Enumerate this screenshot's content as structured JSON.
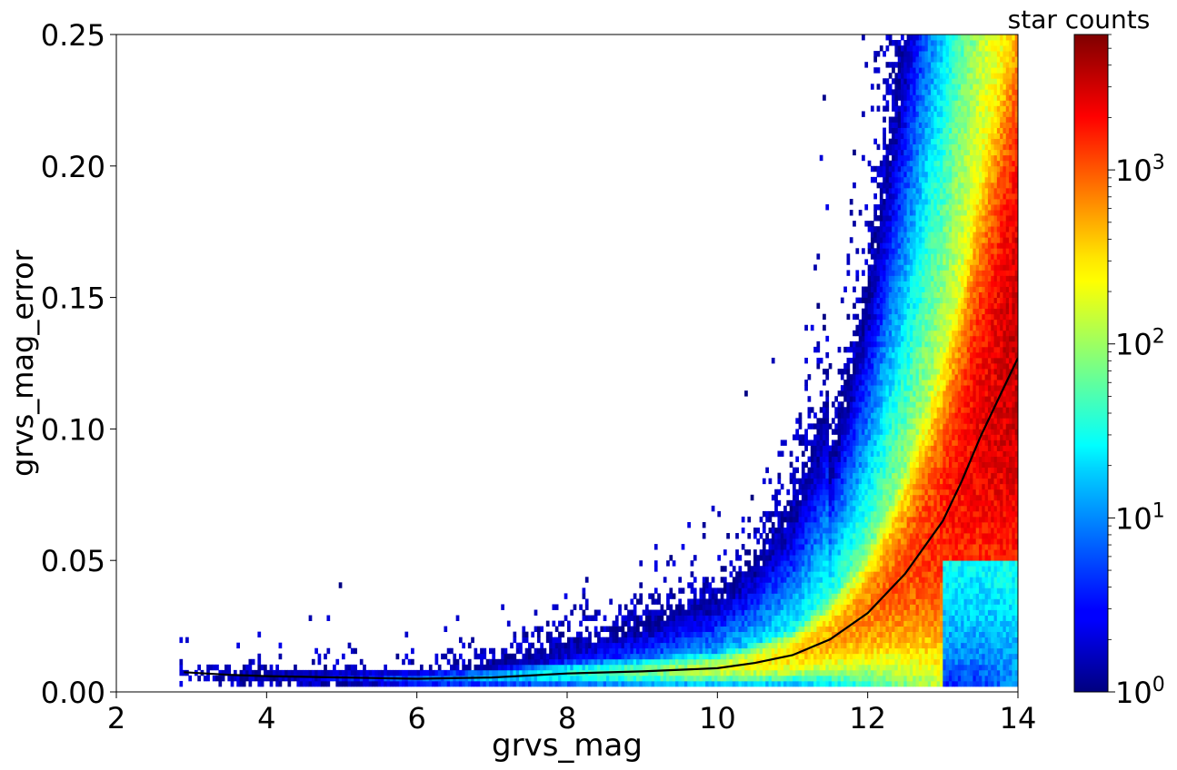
{
  "chart_data": {
    "type": "heatmap",
    "xlabel": "grvs_mag",
    "ylabel": "grvs_mag_error",
    "xlim": [
      2,
      14
    ],
    "ylim": [
      0.0,
      0.25
    ],
    "x_ticks": [
      2,
      4,
      6,
      8,
      10,
      12,
      14
    ],
    "x_tick_labels": [
      "2",
      "4",
      "6",
      "8",
      "10",
      "12",
      "14"
    ],
    "y_ticks": [
      0.0,
      0.05,
      0.1,
      0.15,
      0.2,
      0.25
    ],
    "y_tick_labels": [
      "0.00",
      "0.05",
      "0.10",
      "0.15",
      "0.20",
      "0.25"
    ],
    "colormap": "jet",
    "colorbar": {
      "title": "star counts",
      "scale": "log",
      "range": [
        1,
        6000
      ],
      "ticks": [
        1,
        10,
        100,
        1000
      ],
      "tick_labels": [
        {
          "base": "10",
          "exp": "0"
        },
        {
          "base": "10",
          "exp": "1"
        },
        {
          "base": "10",
          "exp": "2"
        },
        {
          "base": "10",
          "exp": "3"
        }
      ]
    },
    "density_description": "2D histogram of grvs_mag_error vs grvs_mag; counts rise steeply toward faint magnitudes; dense ridge near error ~0.005-0.01 for mag 3-11, widening upward to ~0.12 at mag 14; sparse scatter up to 0.25",
    "min_error_floor": 0.004,
    "x_start": 2.75,
    "band_split_mag": 13.0,
    "median_curve": {
      "color": "#000000",
      "x": [
        2.9,
        3.5,
        4.0,
        5.0,
        6.0,
        7.0,
        8.0,
        9.0,
        10.0,
        10.5,
        11.0,
        11.5,
        12.0,
        12.5,
        13.0,
        13.25,
        13.5,
        13.75,
        14.0
      ],
      "y": [
        0.0075,
        0.0065,
        0.006,
        0.0055,
        0.005,
        0.0055,
        0.007,
        0.0078,
        0.009,
        0.011,
        0.014,
        0.02,
        0.03,
        0.045,
        0.065,
        0.08,
        0.097,
        0.112,
        0.127
      ]
    }
  }
}
